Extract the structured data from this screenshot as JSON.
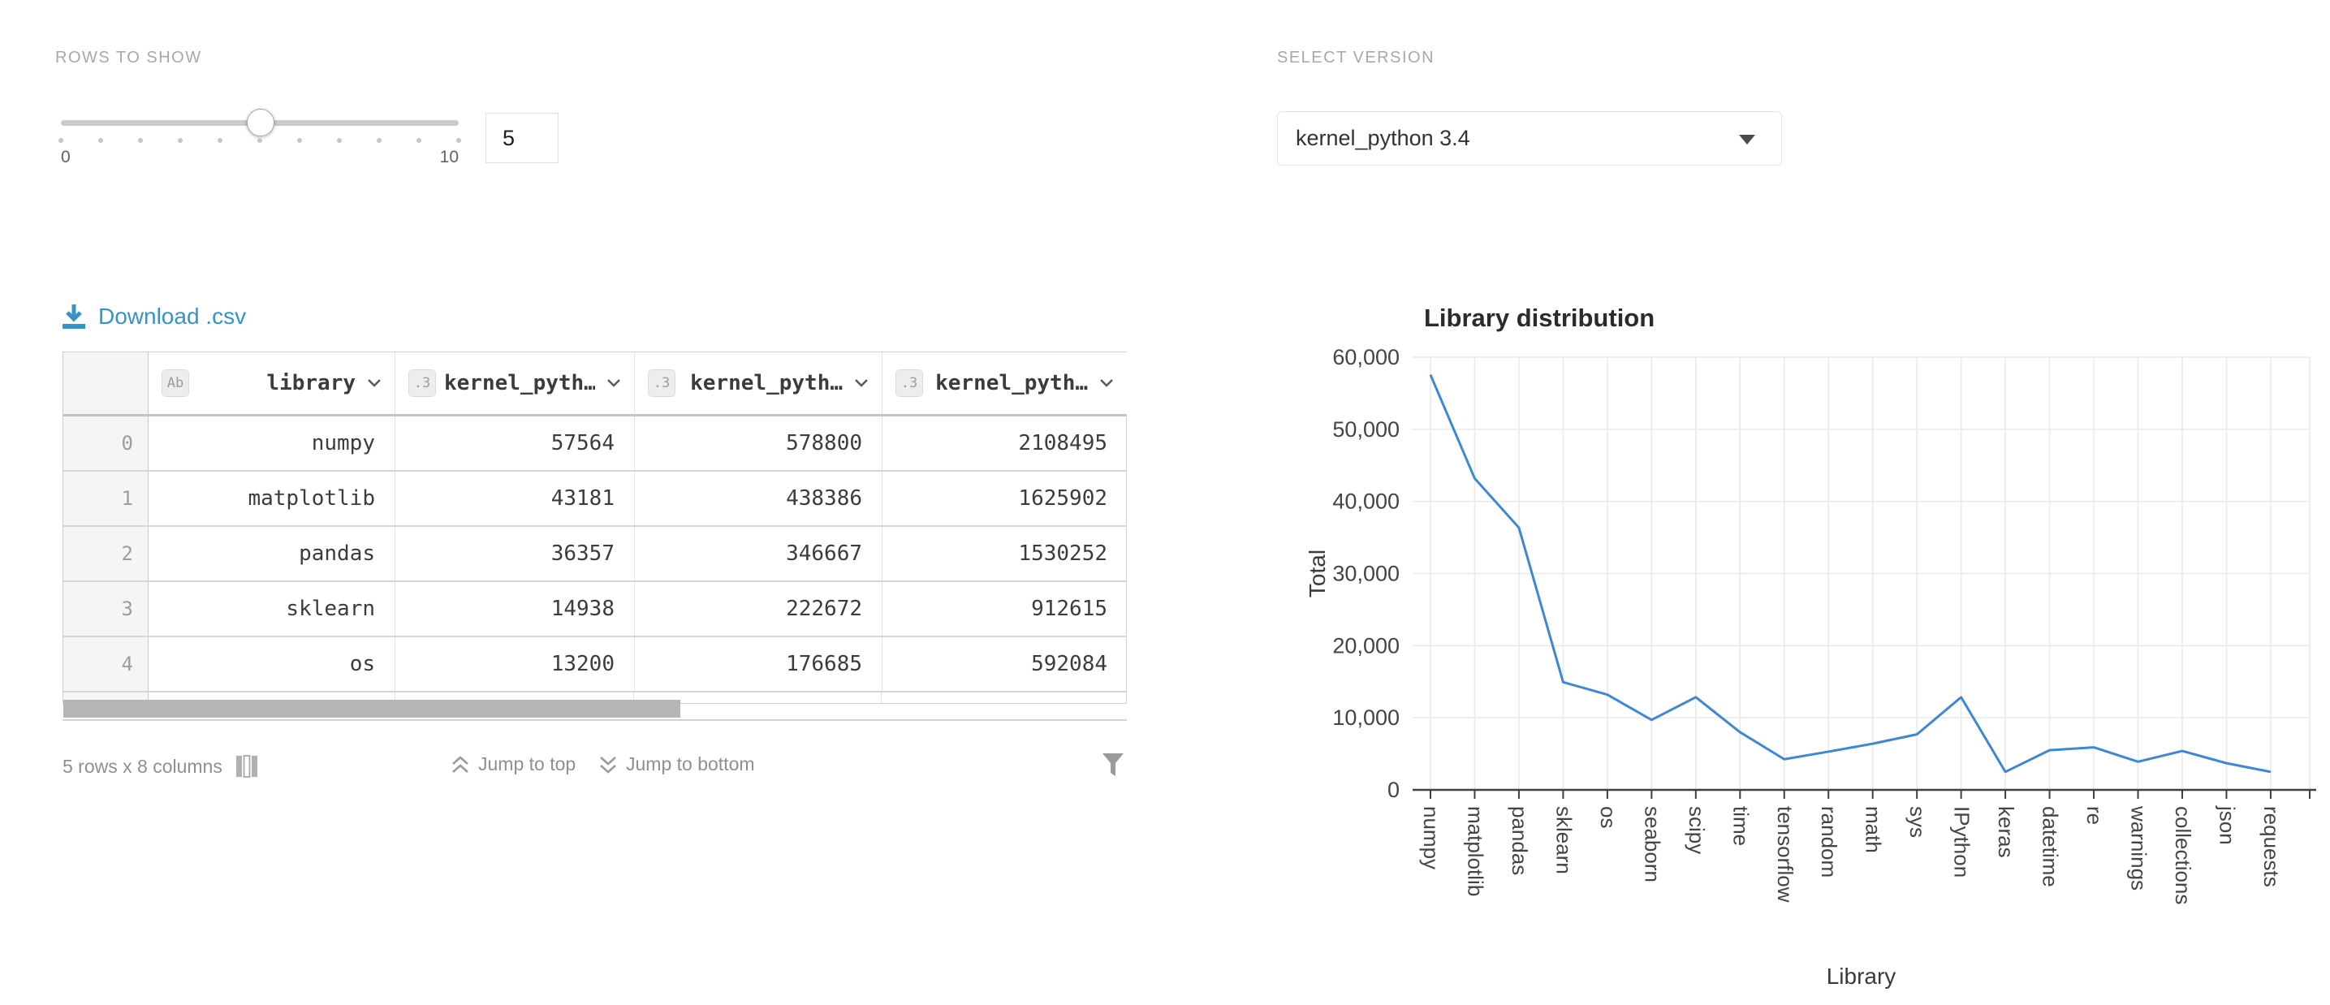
{
  "controls": {
    "rows_to_show": {
      "label": "ROWS TO SHOW",
      "value": "5",
      "min_label": "0",
      "max_label": "10"
    },
    "select_version": {
      "label": "SELECT VERSION",
      "value": "kernel_python 3.4"
    }
  },
  "table": {
    "download_label": "Download .csv",
    "columns": [
      {
        "type_badge": "Ab",
        "name": "library"
      },
      {
        "type_badge": ".3",
        "name": "kernel_pyth…"
      },
      {
        "type_badge": ".3",
        "name": "kernel_pyth…"
      },
      {
        "type_badge": ".3",
        "name": "kernel_pyth…"
      }
    ],
    "rows": [
      {
        "index": "0",
        "cells": [
          "numpy",
          "57564",
          "578800",
          "2108495"
        ]
      },
      {
        "index": "1",
        "cells": [
          "matplotlib",
          "43181",
          "438386",
          "1625902"
        ]
      },
      {
        "index": "2",
        "cells": [
          "pandas",
          "36357",
          "346667",
          "1530252"
        ]
      },
      {
        "index": "3",
        "cells": [
          "sklearn",
          "14938",
          "222672",
          "912615"
        ]
      },
      {
        "index": "4",
        "cells": [
          "os",
          "13200",
          "176685",
          "592084"
        ]
      }
    ],
    "footer": {
      "dims": "5 rows x 8 columns",
      "jump_top": "Jump to top",
      "jump_bottom": "Jump to bottom"
    }
  },
  "chart_data": {
    "type": "line",
    "title": "Library distribution",
    "xlabel": "Library",
    "ylabel": "Total",
    "categories": [
      "numpy",
      "matplotlib",
      "pandas",
      "sklearn",
      "os",
      "seaborn",
      "scipy",
      "time",
      "tensorflow",
      "random",
      "math",
      "sys",
      "IPython",
      "keras",
      "datetime",
      "re",
      "warnings",
      "collections",
      "json",
      "requests"
    ],
    "values": [
      57564,
      43181,
      36357,
      14938,
      13200,
      9700,
      12850,
      8000,
      4250,
      5300,
      6400,
      7700,
      12850,
      2500,
      5500,
      5900,
      3900,
      5400,
      3700,
      2500
    ],
    "ylim": [
      0,
      60000
    ],
    "ytick_step": 10000,
    "ytick_labels": [
      "0",
      "10,000",
      "20,000",
      "30,000",
      "40,000",
      "50,000",
      "60,000"
    ],
    "grid": true,
    "legend": "none",
    "line_color": "#3d87d3"
  },
  "colors": {
    "accent_blue": "#3792c8",
    "line_blue": "#3d87d3",
    "label_gray": "#a8a8a8",
    "grid_gray": "#e9e9e9"
  }
}
